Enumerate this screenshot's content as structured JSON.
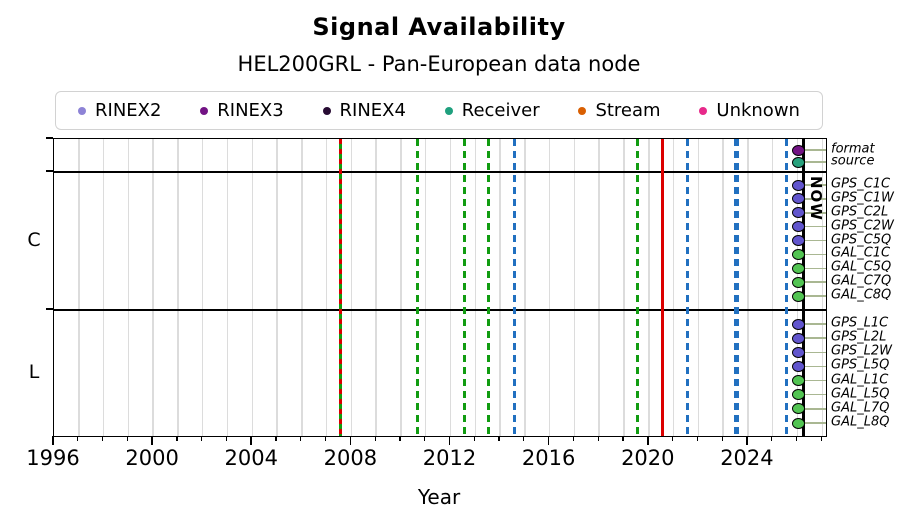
{
  "title": "Signal Availability",
  "subtitle": "HEL200GRL - Pan-European data node",
  "axis": {
    "xlabel": "Year",
    "now_label": "NOW"
  },
  "legend": {
    "items": [
      {
        "label": "RINEX2",
        "color": "#8d83d6"
      },
      {
        "label": "RINEX3",
        "color": "#721384"
      },
      {
        "label": "RINEX4",
        "color": "#270b33"
      },
      {
        "label": "Receiver",
        "color": "#1fa07e"
      },
      {
        "label": "Stream",
        "color": "#d95f02"
      },
      {
        "label": "Unknown",
        "color": "#e7298a"
      }
    ]
  },
  "chart_data": {
    "type": "timeline",
    "title": "Signal Availability",
    "subtitle": "HEL200GRL - Pan-European data node",
    "xlabel": "Year",
    "xlim": [
      1996,
      2027.15
    ],
    "x_major_ticks": [
      1996,
      2000,
      2004,
      2008,
      2012,
      2016,
      2020,
      2024
    ],
    "x_minor_tick_step_years": 1,
    "grid": "vertical gridline every year",
    "legend_position": "top",
    "sections": [
      {
        "label": "",
        "rows": [
          {
            "label": "format",
            "marker_color": "#721384"
          },
          {
            "label": "source",
            "marker_color": "#28a17c"
          }
        ]
      },
      {
        "label": "C",
        "rows": [
          {
            "label": "GPS_C1C",
            "marker_color": "#6155cd"
          },
          {
            "label": "GPS_C1W",
            "marker_color": "#6155cd"
          },
          {
            "label": "GPS_C2L",
            "marker_color": "#6155cd"
          },
          {
            "label": "GPS_C2W",
            "marker_color": "#6155cd"
          },
          {
            "label": "GPS_C5Q",
            "marker_color": "#6155cd"
          },
          {
            "label": "GAL_C1C",
            "marker_color": "#52c452"
          },
          {
            "label": "GAL_C5Q",
            "marker_color": "#52c452"
          },
          {
            "label": "GAL_C7Q",
            "marker_color": "#52c452"
          },
          {
            "label": "GAL_C8Q",
            "marker_color": "#52c452"
          }
        ]
      },
      {
        "label": "L",
        "rows": [
          {
            "label": "GPS_L1C",
            "marker_color": "#6155cd"
          },
          {
            "label": "GPS_L2L",
            "marker_color": "#6155cd"
          },
          {
            "label": "GPS_L2W",
            "marker_color": "#6155cd"
          },
          {
            "label": "GPS_L5Q",
            "marker_color": "#6155cd"
          },
          {
            "label": "GAL_L1C",
            "marker_color": "#52c452"
          },
          {
            "label": "GAL_L5Q",
            "marker_color": "#52c452"
          },
          {
            "label": "GAL_L7Q",
            "marker_color": "#52c452"
          },
          {
            "label": "GAL_L8Q",
            "marker_color": "#52c452"
          }
        ]
      }
    ],
    "row_markers": {
      "start_year": 2026.05,
      "extend_to_year": 2027.15,
      "stem_color": "#a9b792"
    },
    "events": [
      {
        "year": 2007.58,
        "color": "#119c11",
        "style": "solid",
        "width": 3
      },
      {
        "year": 2007.58,
        "color": "#dc0000",
        "style": "dashed",
        "width": 3,
        "dash": [
          5,
          5
        ]
      },
      {
        "year": 2010.65,
        "color": "#119c11",
        "style": "dashed",
        "width": 3
      },
      {
        "year": 2012.58,
        "color": "#119c11",
        "style": "dashed",
        "width": 3
      },
      {
        "year": 2013.55,
        "color": "#119c11",
        "style": "dashed",
        "width": 3
      },
      {
        "year": 2014.6,
        "color": "#2170c0",
        "style": "dashed",
        "width": 3
      },
      {
        "year": 2019.56,
        "color": "#119c11",
        "style": "dashed",
        "width": 3
      },
      {
        "year": 2020.57,
        "color": "#dc0000",
        "style": "solid",
        "width": 3
      },
      {
        "year": 2021.58,
        "color": "#2170c0",
        "style": "dashed",
        "width": 3
      },
      {
        "year": 2023.52,
        "color": "#2170c0",
        "style": "dashed",
        "width": 5
      },
      {
        "year": 2025.57,
        "color": "#2170c0",
        "style": "dashed",
        "width": 3
      },
      {
        "year": 2026.26,
        "color": "#000000",
        "style": "solid",
        "width": 3,
        "label": "NOW"
      }
    ],
    "legend_entries": [
      "RINEX2",
      "RINEX3",
      "RINEX4",
      "Receiver",
      "Stream",
      "Unknown"
    ]
  }
}
